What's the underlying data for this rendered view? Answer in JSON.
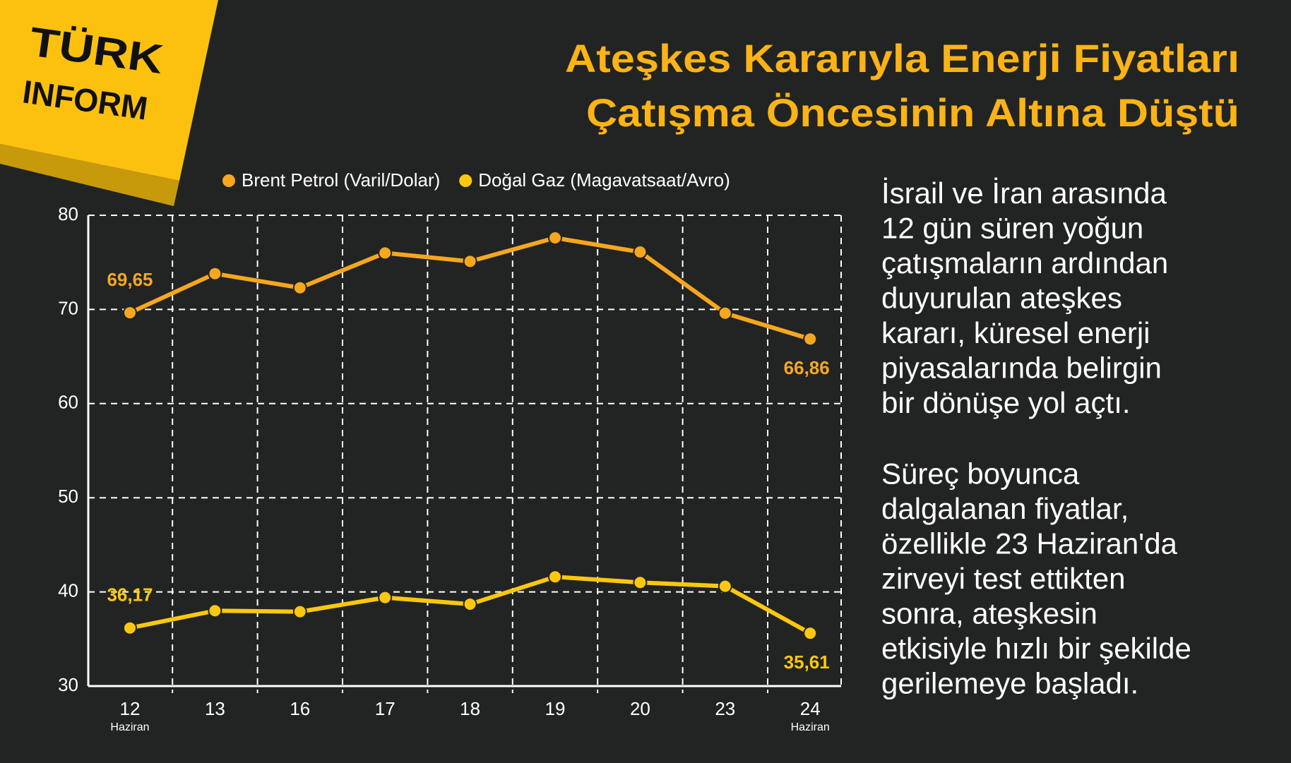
{
  "logo": {
    "line1": "TÜRK",
    "line2": "INFORM"
  },
  "description": [
    [
      "İsrail ve İran arasında",
      "12 gün süren yoğun",
      "çatışmaların ardından",
      "duyurulan ateşkes",
      "kararı, küresel enerji",
      "piyasalarında belirgin",
      "bir dönüşe yol açtı."
    ],
    [
      "Süreç boyunca",
      "dalgalanan fiyatlar,",
      "özellikle 23 Haziran'da",
      "zirveyi test ettikten",
      "sonra, ateşkesin",
      "etkisiyle hızlı bir şekilde",
      "gerilemeye başladı."
    ]
  ],
  "chart_data": {
    "type": "line",
    "title": [
      "Ateşkes Kararıyla Enerji Fiyatları",
      "Çatışma Öncesinin Altına Düştü"
    ],
    "categories": [
      "12",
      "13",
      "16",
      "17",
      "18",
      "19",
      "20",
      "23",
      "24"
    ],
    "category_sublabels": [
      "Haziran",
      null,
      null,
      null,
      null,
      null,
      null,
      null,
      "Haziran"
    ],
    "series": [
      {
        "name": "Brent Petrol (Varil/Dolar)",
        "color": "#f6a71f",
        "values": [
          69.65,
          73.8,
          72.3,
          76.0,
          75.1,
          77.6,
          76.1,
          69.6,
          66.86
        ],
        "value_labels": [
          "69,65",
          null,
          null,
          null,
          null,
          null,
          null,
          null,
          "66,86"
        ]
      },
      {
        "name": "Doğal Gaz (Magavatsaat/Avro)",
        "color": "#fcc80e",
        "values": [
          36.17,
          38.0,
          37.9,
          39.4,
          38.7,
          41.6,
          41.0,
          40.6,
          35.61
        ],
        "value_labels": [
          "36,17",
          null,
          null,
          null,
          null,
          null,
          null,
          null,
          "35,61"
        ]
      }
    ],
    "ylim": [
      30,
      80
    ],
    "yticks": [
      30,
      40,
      50,
      60,
      70,
      80
    ],
    "grid": true
  }
}
